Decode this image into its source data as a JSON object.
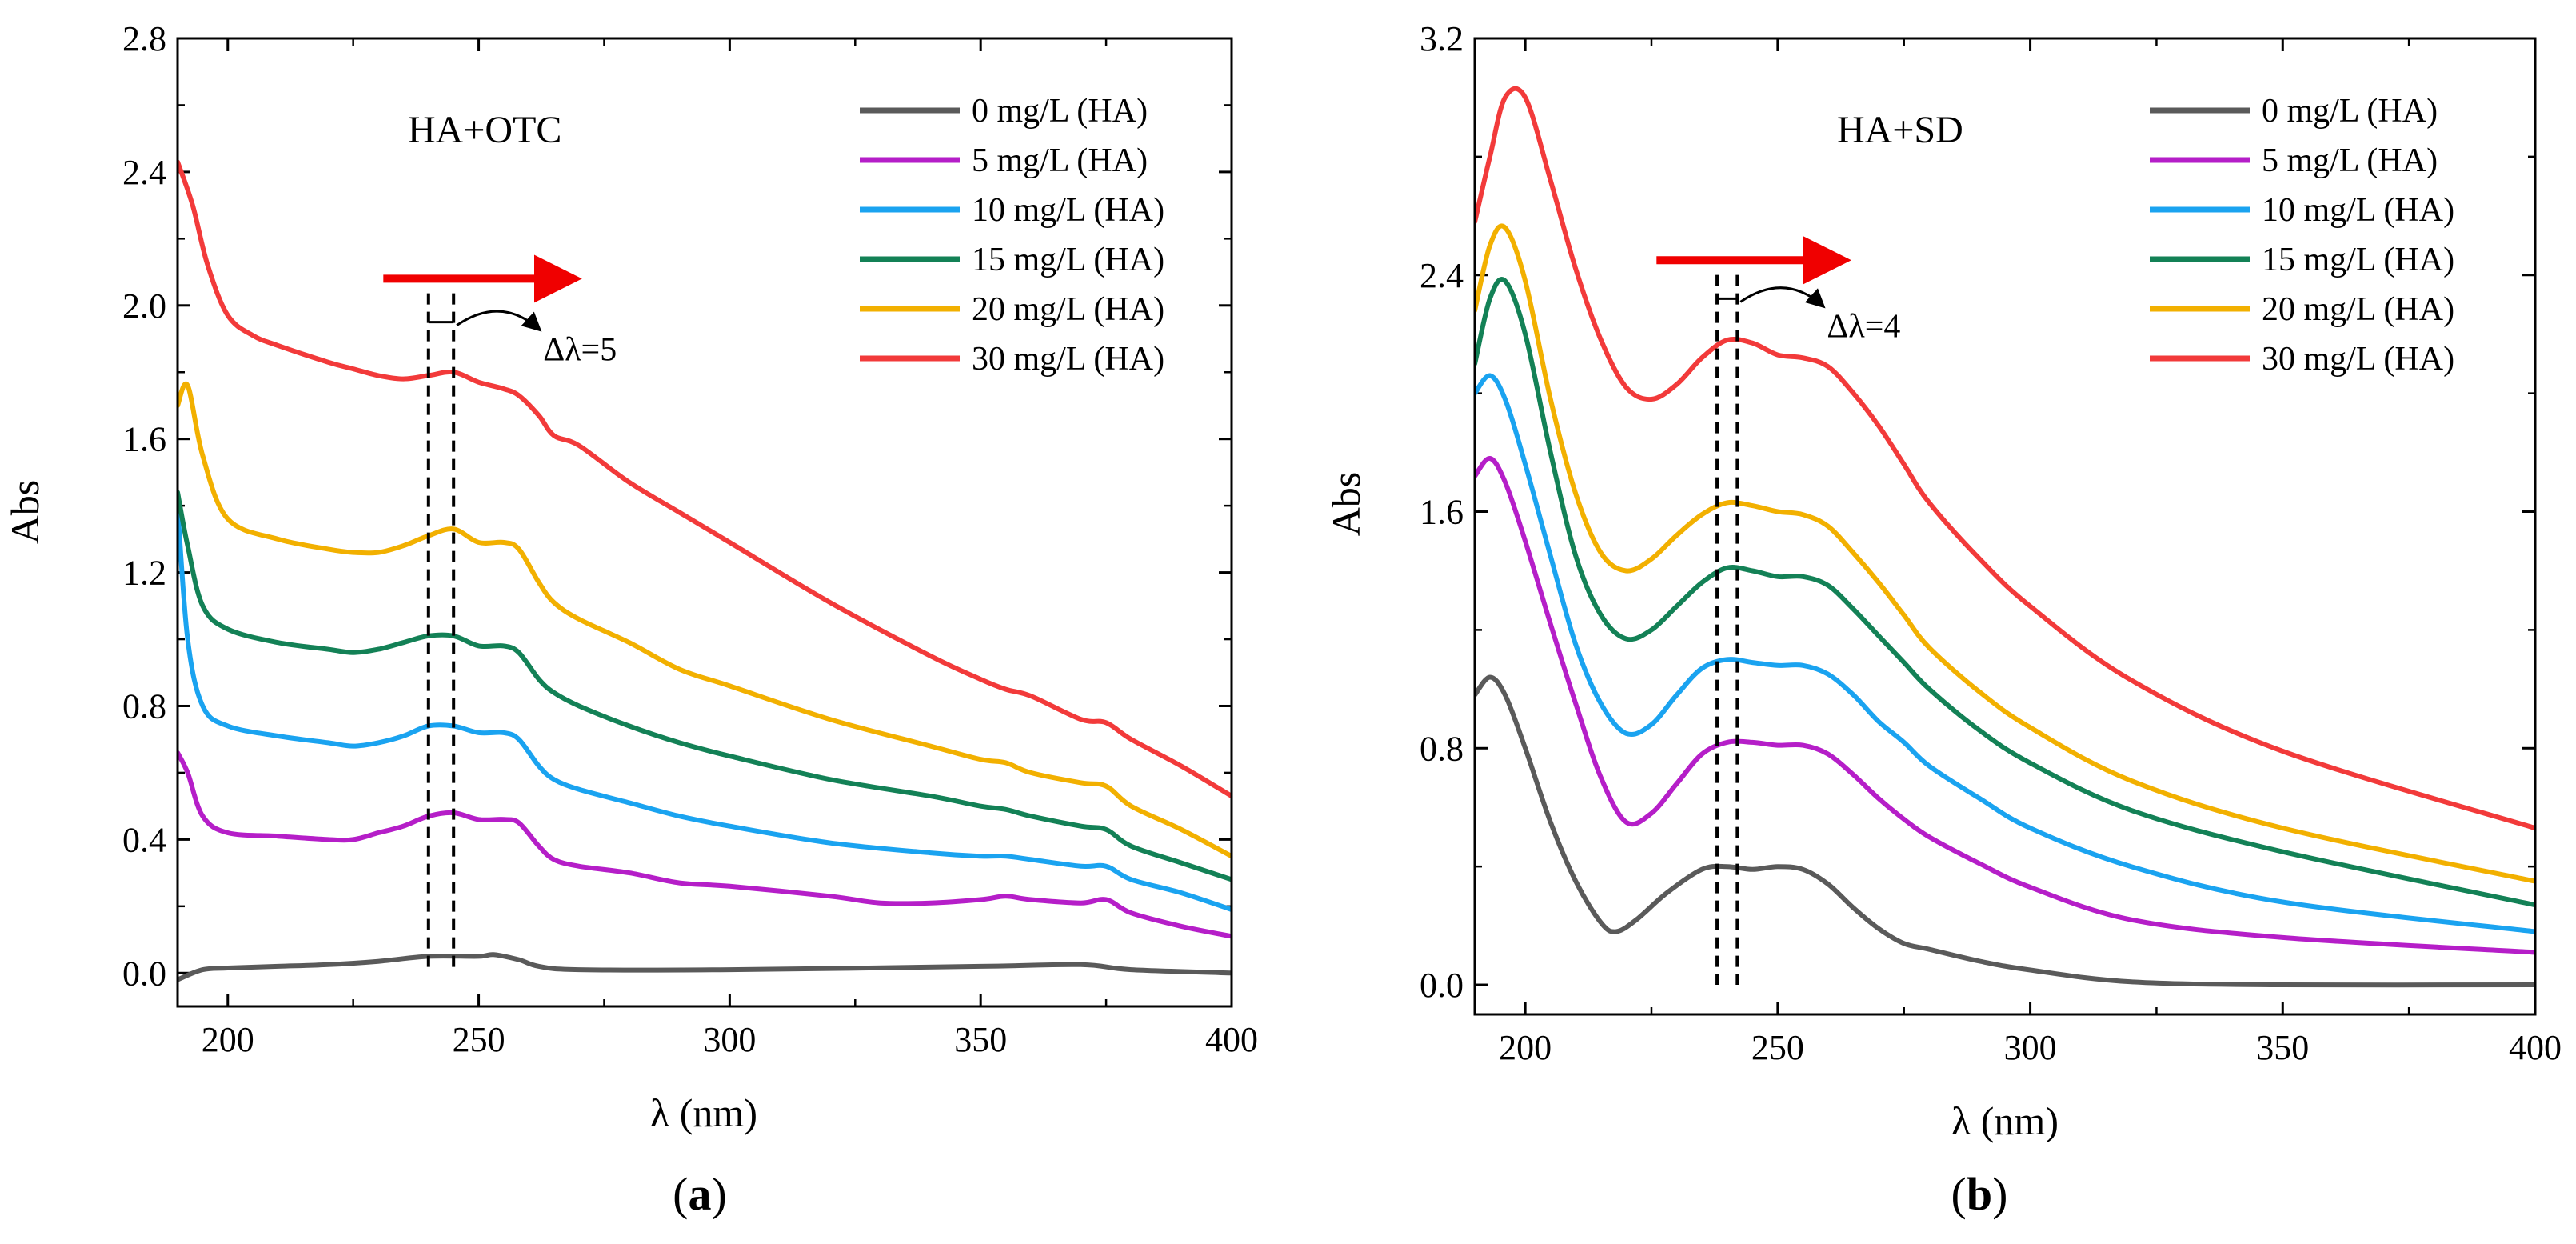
{
  "chart_data": [
    {
      "id": "a",
      "type": "line",
      "caption_letter": "a",
      "title": "",
      "annotation": "HA+OTC",
      "shift_label": "Δλ=5",
      "xlabel": "λ (nm)",
      "ylabel": "Abs",
      "xlim": [
        190,
        400
      ],
      "ylim": [
        -0.1,
        2.8
      ],
      "xticks": [
        200,
        250,
        300,
        350,
        400
      ],
      "yticks": [
        "0.0",
        "0.4",
        "0.8",
        "1.2",
        "1.6",
        "2.0",
        "2.4",
        "2.8"
      ],
      "dashed_lines_x": [
        240,
        245
      ],
      "shift_arrow_x": [
        231,
        269
      ],
      "shift_arrow_y": 2.08,
      "shift_bracket_y": 1.95,
      "legend_position": "top-right",
      "series": [
        {
          "name": "0 mg/L (HA)",
          "color": "#5a5a5a",
          "x": [
            190,
            195,
            200,
            210,
            220,
            230,
            240,
            250,
            253,
            258,
            262,
            270,
            300,
            350,
            370,
            380,
            400
          ],
          "y": [
            -0.02,
            0.01,
            0.015,
            0.02,
            0.025,
            0.035,
            0.05,
            0.05,
            0.055,
            0.04,
            0.02,
            0.01,
            0.01,
            0.02,
            0.025,
            0.01,
            0.0
          ]
        },
        {
          "name": "5 mg/L (HA)",
          "color": "#b51ec8",
          "x": [
            190,
            192,
            195,
            200,
            210,
            220,
            225,
            230,
            235,
            240,
            245,
            250,
            255,
            258,
            262,
            265,
            270,
            280,
            290,
            300,
            320,
            330,
            340,
            350,
            355,
            360,
            370,
            375,
            380,
            390,
            400
          ],
          "y": [
            0.66,
            0.6,
            0.47,
            0.42,
            0.41,
            0.4,
            0.4,
            0.42,
            0.44,
            0.47,
            0.48,
            0.46,
            0.46,
            0.45,
            0.38,
            0.34,
            0.32,
            0.3,
            0.27,
            0.26,
            0.23,
            0.21,
            0.21,
            0.22,
            0.23,
            0.22,
            0.21,
            0.22,
            0.18,
            0.14,
            0.11
          ]
        },
        {
          "name": "10 mg/L (HA)",
          "color": "#1aa3f0",
          "x": [
            190,
            192,
            195,
            200,
            210,
            220,
            225,
            230,
            235,
            240,
            245,
            250,
            255,
            258,
            262,
            265,
            270,
            280,
            290,
            300,
            320,
            340,
            350,
            355,
            360,
            370,
            375,
            380,
            390,
            400
          ],
          "y": [
            1.4,
            1.0,
            0.8,
            0.74,
            0.71,
            0.69,
            0.68,
            0.69,
            0.71,
            0.74,
            0.74,
            0.72,
            0.72,
            0.7,
            0.62,
            0.58,
            0.55,
            0.51,
            0.47,
            0.44,
            0.39,
            0.36,
            0.35,
            0.35,
            0.34,
            0.32,
            0.32,
            0.28,
            0.24,
            0.19
          ]
        },
        {
          "name": "15 mg/L (HA)",
          "color": "#138156",
          "x": [
            190,
            192,
            195,
            200,
            210,
            220,
            225,
            230,
            235,
            240,
            245,
            250,
            255,
            258,
            262,
            265,
            270,
            280,
            290,
            300,
            320,
            340,
            350,
            355,
            360,
            370,
            375,
            380,
            390,
            400
          ],
          "y": [
            1.44,
            1.28,
            1.1,
            1.03,
            0.99,
            0.97,
            0.96,
            0.97,
            0.99,
            1.01,
            1.01,
            0.98,
            0.98,
            0.96,
            0.88,
            0.84,
            0.8,
            0.74,
            0.69,
            0.65,
            0.58,
            0.53,
            0.5,
            0.49,
            0.47,
            0.44,
            0.43,
            0.38,
            0.33,
            0.28
          ]
        },
        {
          "name": "20 mg/L (HA)",
          "color": "#f2b000",
          "x": [
            190,
            192,
            195,
            200,
            210,
            220,
            225,
            230,
            235,
            240,
            245,
            250,
            255,
            258,
            262,
            265,
            270,
            280,
            290,
            300,
            320,
            340,
            350,
            355,
            360,
            370,
            375,
            380,
            390,
            400
          ],
          "y": [
            1.7,
            1.76,
            1.55,
            1.36,
            1.3,
            1.27,
            1.26,
            1.26,
            1.28,
            1.31,
            1.33,
            1.29,
            1.29,
            1.27,
            1.17,
            1.11,
            1.06,
            0.99,
            0.91,
            0.86,
            0.76,
            0.68,
            0.64,
            0.63,
            0.6,
            0.57,
            0.56,
            0.5,
            0.43,
            0.35
          ]
        },
        {
          "name": "30 mg/L (HA)",
          "color": "#f23a3a",
          "x": [
            190,
            193,
            196,
            200,
            205,
            210,
            220,
            225,
            230,
            235,
            240,
            245,
            250,
            255,
            258,
            262,
            265,
            270,
            280,
            290,
            300,
            320,
            340,
            350,
            355,
            360,
            370,
            375,
            380,
            390,
            400
          ],
          "y": [
            2.43,
            2.3,
            2.12,
            1.97,
            1.91,
            1.88,
            1.83,
            1.81,
            1.79,
            1.78,
            1.79,
            1.8,
            1.77,
            1.75,
            1.73,
            1.67,
            1.61,
            1.58,
            1.47,
            1.38,
            1.29,
            1.11,
            0.95,
            0.88,
            0.85,
            0.83,
            0.76,
            0.75,
            0.7,
            0.62,
            0.53
          ]
        }
      ]
    },
    {
      "id": "b",
      "type": "line",
      "caption_letter": "b",
      "title": "",
      "annotation": "HA+SD",
      "shift_label": "Δλ=4",
      "xlabel": "λ (nm)",
      "ylabel": "Abs",
      "xlim": [
        190,
        400
      ],
      "ylim": [
        -0.1,
        3.2
      ],
      "xticks": [
        200,
        250,
        300,
        350,
        400
      ],
      "yticks": [
        "0.0",
        "0.8",
        "1.6",
        "2.4",
        "3.2"
      ],
      "dashed_lines_x": [
        238,
        242
      ],
      "shift_arrow_x": [
        226,
        263
      ],
      "shift_arrow_y": 2.45,
      "shift_bracket_y": 2.32,
      "legend_position": "top-right",
      "series": [
        {
          "name": "0 mg/L (HA)",
          "color": "#5a5a5a",
          "x": [
            190,
            193,
            196,
            200,
            205,
            210,
            215,
            218,
            222,
            228,
            235,
            240,
            245,
            250,
            255,
            260,
            265,
            270,
            275,
            280,
            290,
            300,
            320,
            350,
            400
          ],
          "y": [
            0.98,
            1.04,
            0.98,
            0.8,
            0.55,
            0.35,
            0.21,
            0.18,
            0.22,
            0.31,
            0.39,
            0.4,
            0.39,
            0.4,
            0.39,
            0.34,
            0.26,
            0.19,
            0.14,
            0.12,
            0.08,
            0.05,
            0.01,
            0.0,
            0.0
          ]
        },
        {
          "name": "5 mg/L (HA)",
          "color": "#b51ec8",
          "x": [
            190,
            193,
            196,
            200,
            205,
            210,
            215,
            220,
            225,
            230,
            235,
            240,
            245,
            250,
            255,
            260,
            265,
            270,
            275,
            280,
            290,
            300,
            320,
            350,
            400
          ],
          "y": [
            1.72,
            1.78,
            1.7,
            1.5,
            1.22,
            0.95,
            0.7,
            0.55,
            0.58,
            0.68,
            0.78,
            0.82,
            0.82,
            0.81,
            0.81,
            0.78,
            0.71,
            0.63,
            0.56,
            0.5,
            0.41,
            0.33,
            0.22,
            0.16,
            0.11
          ]
        },
        {
          "name": "10 mg/L (HA)",
          "color": "#1aa3f0",
          "x": [
            190,
            193,
            196,
            200,
            205,
            210,
            215,
            220,
            225,
            230,
            235,
            240,
            245,
            250,
            255,
            260,
            265,
            270,
            275,
            280,
            290,
            300,
            320,
            350,
            400
          ],
          "y": [
            2.0,
            2.06,
            1.98,
            1.76,
            1.45,
            1.15,
            0.95,
            0.85,
            0.88,
            0.98,
            1.07,
            1.1,
            1.09,
            1.08,
            1.08,
            1.05,
            0.98,
            0.89,
            0.82,
            0.74,
            0.63,
            0.53,
            0.4,
            0.28,
            0.18
          ]
        },
        {
          "name": "15 mg/L (HA)",
          "color": "#138156",
          "x": [
            190,
            193,
            196,
            200,
            205,
            210,
            215,
            220,
            225,
            230,
            235,
            240,
            245,
            250,
            255,
            260,
            265,
            270,
            275,
            280,
            290,
            300,
            320,
            350,
            400
          ],
          "y": [
            2.1,
            2.32,
            2.38,
            2.2,
            1.8,
            1.45,
            1.25,
            1.17,
            1.2,
            1.28,
            1.36,
            1.41,
            1.4,
            1.38,
            1.38,
            1.35,
            1.27,
            1.18,
            1.09,
            1.0,
            0.86,
            0.75,
            0.59,
            0.45,
            0.27
          ]
        },
        {
          "name": "20 mg/L (HA)",
          "color": "#f2b000",
          "x": [
            190,
            193,
            196,
            200,
            205,
            210,
            215,
            220,
            225,
            230,
            235,
            240,
            245,
            250,
            255,
            260,
            265,
            270,
            275,
            280,
            290,
            300,
            320,
            350,
            400
          ],
          "y": [
            2.28,
            2.5,
            2.56,
            2.38,
            1.98,
            1.66,
            1.46,
            1.4,
            1.44,
            1.52,
            1.59,
            1.63,
            1.62,
            1.6,
            1.59,
            1.55,
            1.46,
            1.36,
            1.25,
            1.14,
            0.99,
            0.87,
            0.69,
            0.53,
            0.35
          ]
        },
        {
          "name": "30 mg/L (HA)",
          "color": "#f23a3a",
          "x": [
            190,
            193,
            196,
            200,
            205,
            210,
            215,
            220,
            225,
            230,
            235,
            240,
            245,
            250,
            255,
            260,
            265,
            270,
            275,
            280,
            290,
            300,
            320,
            350,
            400
          ],
          "y": [
            2.58,
            2.8,
            3.0,
            3.0,
            2.72,
            2.42,
            2.18,
            2.02,
            1.98,
            2.03,
            2.12,
            2.18,
            2.17,
            2.13,
            2.12,
            2.09,
            2.0,
            1.89,
            1.76,
            1.63,
            1.44,
            1.28,
            1.03,
            0.79,
            0.53
          ]
        }
      ]
    }
  ]
}
